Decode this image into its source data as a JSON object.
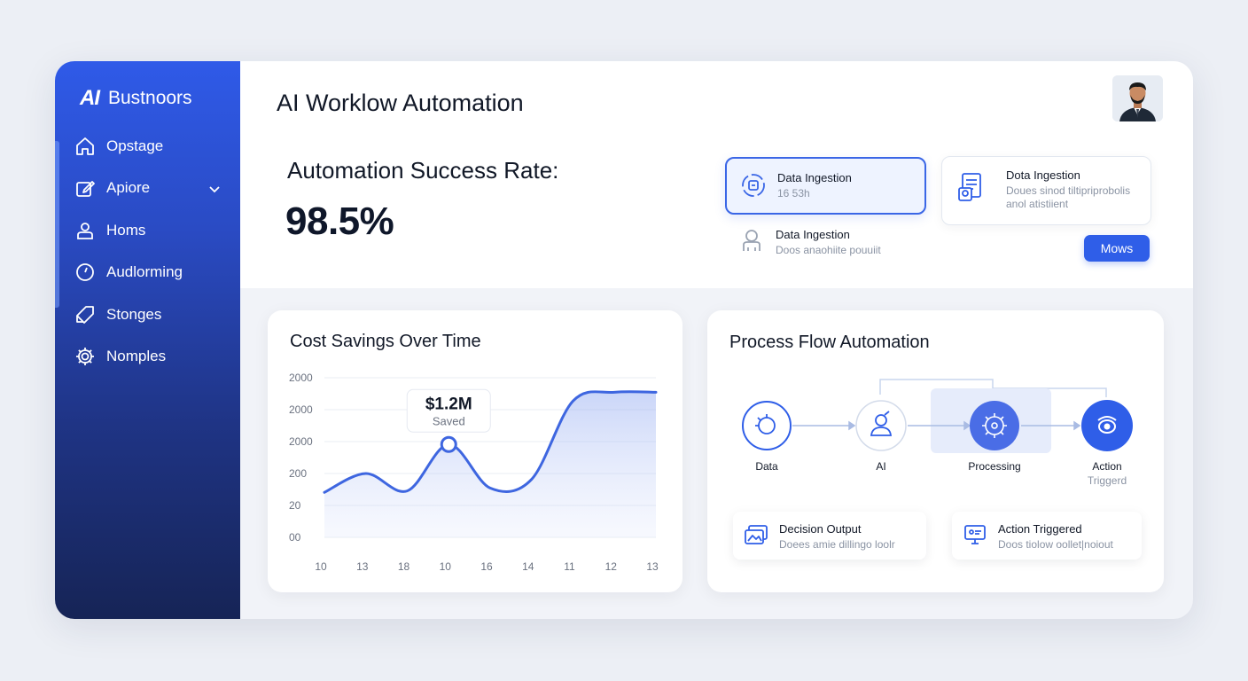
{
  "brand": {
    "mark": "AI",
    "name": "Bustnoors"
  },
  "sidebar": {
    "items": [
      {
        "label": "Opstage",
        "icon": "home-icon"
      },
      {
        "label": "Apiore",
        "icon": "edit-icon",
        "has_chevron": true
      },
      {
        "label": "Homs",
        "icon": "user-icon"
      },
      {
        "label": "Audlorming",
        "icon": "clock-icon"
      },
      {
        "label": "Stonges",
        "icon": "tag-icon"
      },
      {
        "label": "Nomples",
        "icon": "gear-icon"
      }
    ]
  },
  "header": {
    "title": "AI Worklow Automation"
  },
  "metric": {
    "label": "Automation Success Rate:",
    "value": "98.5%"
  },
  "cards": {
    "a": {
      "title": "Data Ingestion",
      "sub": "16 53h"
    },
    "b": {
      "title": "Dota Ingestion",
      "sub1": "Doues sinod tiltipriprobolis",
      "sub2": "anol atistiient"
    },
    "c": {
      "title": "Data Ingestion",
      "sub": "Doos anaohiite pouuiit"
    },
    "button": "Mows"
  },
  "cost_panel": {
    "title": "Cost Savings Over Time"
  },
  "chart_data": {
    "type": "area",
    "title": "Cost Savings Over Time",
    "x_ticks": [
      "10",
      "13",
      "18",
      "10",
      "16",
      "14",
      "11",
      "12",
      "13"
    ],
    "y_ticks": [
      "2000",
      "2000",
      "2000",
      "200",
      "20",
      "00"
    ],
    "series": [
      {
        "values": [
          1.55,
          2.2,
          1.6,
          3.2,
          1.7,
          2.0,
          4.7,
          5.0,
          5.0
        ]
      }
    ],
    "ylim": [
      0,
      5.5
    ],
    "annotation": {
      "value": "$1.2M",
      "label": "Saved",
      "index": 3
    },
    "grid": true,
    "color": "#3e66e0"
  },
  "flow_panel": {
    "title": "Process Flow Automation",
    "nodes": [
      {
        "label": "Data",
        "icon": "target-icon"
      },
      {
        "label": "AI",
        "icon": "ai-user-icon"
      },
      {
        "label": "Processing",
        "icon": "brain-icon"
      },
      {
        "label": "Action",
        "sub": "Triggerd",
        "icon": "refresh-icon"
      }
    ],
    "outputs": [
      {
        "title": "Decision Output",
        "sub": "Doees amie dillingo loolr",
        "icon": "image-icon"
      },
      {
        "title": "Action Triggered",
        "sub": "Doos tiolow oollet|noiout",
        "icon": "monitor-icon"
      }
    ]
  },
  "colors": {
    "primary": "#2f5ee8",
    "sidebar_top": "#2f5ae8",
    "sidebar_bottom": "#162456"
  }
}
